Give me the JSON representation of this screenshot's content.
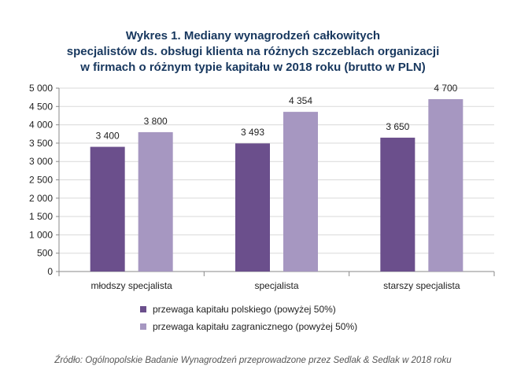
{
  "title_lines": [
    "Wykres 1. Mediany wynagrodzeń całkowitych",
    "specjalistów ds. obsługi klienta na różnych szczeblach organizacji",
    "w firmach o różnym typie kapitału w 2018 roku (brutto w PLN)"
  ],
  "source": "Źródło: Ogólnopolskie Badanie Wynagrodzeń przeprowadzone  przez Sedlak & Sedlak w 2018 roku",
  "colors": {
    "series_1": "#6b4f8c",
    "series_2": "#a697c1",
    "title": "#17375e",
    "grid": "#d9d9d9",
    "axis": "#888888"
  },
  "chart_data": {
    "type": "bar",
    "categories": [
      "młodszy specjalista",
      "specjalista",
      "starszy specjalista"
    ],
    "series": [
      {
        "name": "przewaga kapitału polskiego (powyżej 50%)",
        "values": [
          3400,
          3493,
          3650
        ],
        "labels": [
          "3 400",
          "3 493",
          "3 650"
        ]
      },
      {
        "name": "przewaga kapitału zagranicznego (powyżej 50%)",
        "values": [
          3800,
          4354,
          4700
        ],
        "labels": [
          "3 800",
          "4 354",
          "4 700"
        ]
      }
    ],
    "ylim": [
      0,
      5000
    ],
    "y_ticks": [
      0,
      500,
      1000,
      1500,
      2000,
      2500,
      3000,
      3500,
      4000,
      4500,
      5000
    ],
    "y_tick_labels": [
      "0",
      "500",
      "1 000",
      "1 500",
      "2 000",
      "2 500",
      "3 000",
      "3 500",
      "4 000",
      "4 500",
      "5 000"
    ],
    "grid": true,
    "legend_position": "bottom"
  }
}
